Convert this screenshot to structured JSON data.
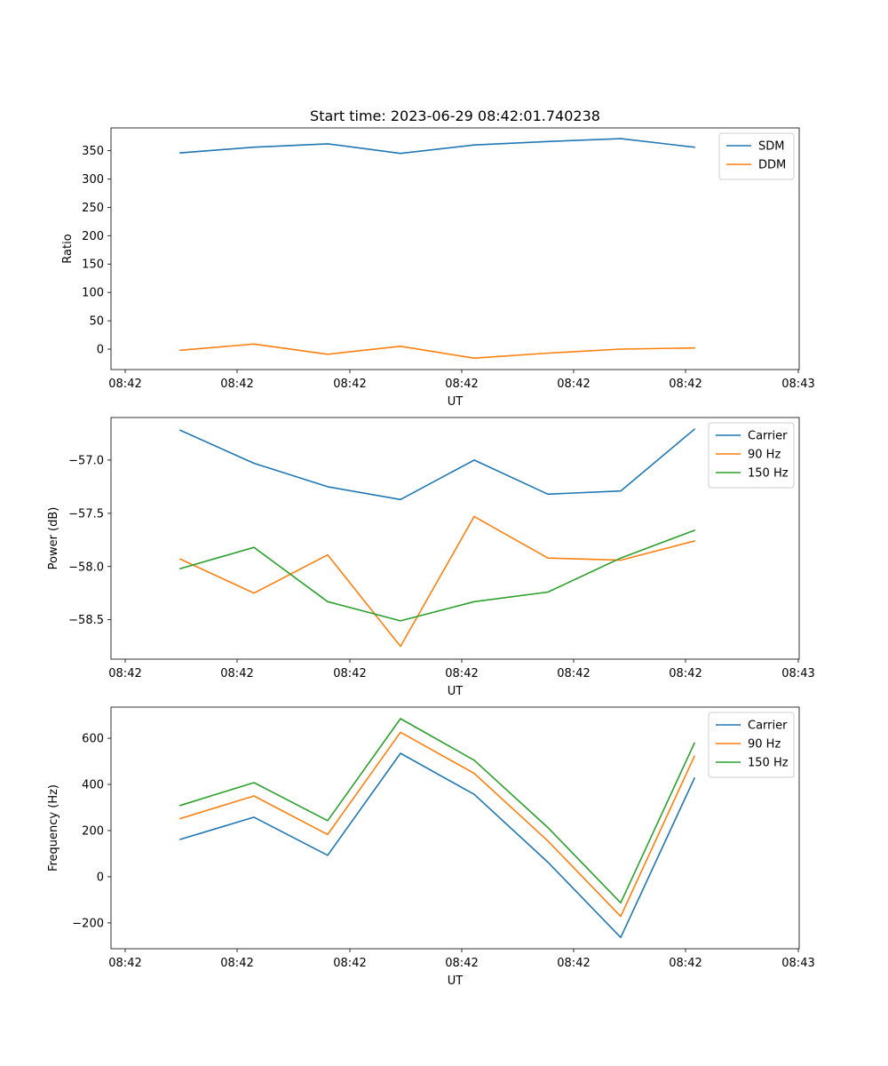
{
  "title": "Start time: 2023-06-29 08:42:01.740238",
  "colors": {
    "blue": "#1f77b4",
    "orange": "#ff7f0e",
    "green": "#2ca02c"
  },
  "chart_data": [
    {
      "type": "line",
      "title": "Start time: 2023-06-29 08:42:01.740238",
      "xlabel": "UT",
      "ylabel": "Ratio",
      "x_tick_labels": [
        "08:42",
        "08:42",
        "08:42",
        "08:42",
        "08:42",
        "08:42",
        "08:43"
      ],
      "y_ticks": [
        0,
        50,
        100,
        150,
        200,
        250,
        300,
        350
      ],
      "y_tick_labels": [
        "0",
        "50",
        "100",
        "150",
        "200",
        "250",
        "300",
        "350"
      ],
      "ylim": [
        -36,
        390
      ],
      "legend_position": "top-right",
      "series": [
        {
          "name": "SDM",
          "color": "#1f77b4",
          "values": [
            346,
            356,
            362,
            345,
            360,
            366,
            371,
            356
          ]
        },
        {
          "name": "DDM",
          "color": "#ff7f0e",
          "values": [
            -2,
            9,
            -9,
            5,
            -16,
            -7,
            0,
            2
          ]
        }
      ]
    },
    {
      "type": "line",
      "title": "",
      "xlabel": "UT",
      "ylabel": "Power (dB)",
      "x_tick_labels": [
        "08:42",
        "08:42",
        "08:42",
        "08:42",
        "08:42",
        "08:42",
        "08:43"
      ],
      "y_ticks": [
        -58.5,
        -58.0,
        -57.5,
        -57.0
      ],
      "y_tick_labels": [
        "−58.5",
        "−58.0",
        "−57.5",
        "−57.0"
      ],
      "ylim": [
        -58.87,
        -56.6
      ],
      "legend_position": "top-right",
      "series": [
        {
          "name": "Carrier",
          "color": "#1f77b4",
          "values": [
            -56.72,
            -57.03,
            -57.25,
            -57.37,
            -57.0,
            -57.32,
            -57.29,
            -56.71
          ]
        },
        {
          "name": "90 Hz",
          "color": "#ff7f0e",
          "values": [
            -57.93,
            -58.25,
            -57.89,
            -58.75,
            -57.53,
            -57.92,
            -57.94,
            -57.76
          ]
        },
        {
          "name": "150 Hz",
          "color": "#2ca02c",
          "values": [
            -58.02,
            -57.82,
            -58.33,
            -58.51,
            -58.33,
            -58.24,
            -57.92,
            -57.66
          ]
        }
      ]
    },
    {
      "type": "line",
      "title": "",
      "xlabel": "UT",
      "ylabel": "Frequency (Hz)",
      "x_tick_labels": [
        "08:42",
        "08:42",
        "08:42",
        "08:42",
        "08:42",
        "08:42",
        "08:43"
      ],
      "y_ticks": [
        -200,
        0,
        200,
        400,
        600
      ],
      "y_tick_labels": [
        "−200",
        "0",
        "200",
        "400",
        "600"
      ],
      "ylim": [
        -312,
        735
      ],
      "legend_position": "top-right",
      "series": [
        {
          "name": "Carrier",
          "color": "#1f77b4",
          "values": [
            162,
            258,
            93,
            535,
            357,
            63,
            -263,
            427
          ]
        },
        {
          "name": "90 Hz",
          "color": "#ff7f0e",
          "values": [
            252,
            350,
            183,
            626,
            448,
            155,
            -172,
            522
          ]
        },
        {
          "name": "150 Hz",
          "color": "#2ca02c",
          "values": [
            309,
            408,
            243,
            685,
            505,
            213,
            -113,
            579
          ]
        }
      ]
    }
  ]
}
